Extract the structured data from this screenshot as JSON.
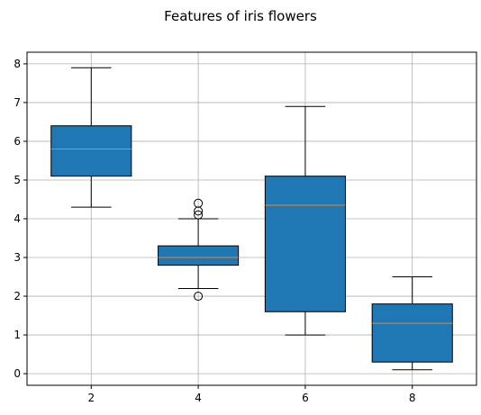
{
  "chart_data": {
    "type": "box",
    "title": "Features of iris flowers",
    "xlabel": "",
    "ylabel": "",
    "positions": [
      2,
      4,
      6,
      8
    ],
    "xlim": [
      0.8,
      9.2
    ],
    "ylim": [
      -0.3,
      8.3
    ],
    "xticks": [
      2,
      4,
      6,
      8
    ],
    "yticks": [
      0,
      1,
      2,
      3,
      4,
      5,
      6,
      7,
      8
    ],
    "grid": true,
    "box_color": "#1f77b4",
    "median_color": "#ff7f0e",
    "boxes": [
      {
        "position": 2,
        "whisker_low": 4.3,
        "q1": 5.1,
        "median": 5.8,
        "q3": 6.4,
        "whisker_high": 7.9,
        "outliers": []
      },
      {
        "position": 4,
        "whisker_low": 2.2,
        "q1": 2.8,
        "median": 3.0,
        "q3": 3.3,
        "whisker_high": 4.0,
        "outliers": [
          4.4,
          4.1,
          4.2,
          2.0
        ]
      },
      {
        "position": 6,
        "whisker_low": 1.0,
        "q1": 1.6,
        "median": 4.35,
        "q3": 5.1,
        "whisker_high": 6.9,
        "outliers": []
      },
      {
        "position": 8,
        "whisker_low": 0.1,
        "q1": 0.3,
        "median": 1.3,
        "q3": 1.8,
        "whisker_high": 2.5,
        "outliers": []
      }
    ]
  }
}
